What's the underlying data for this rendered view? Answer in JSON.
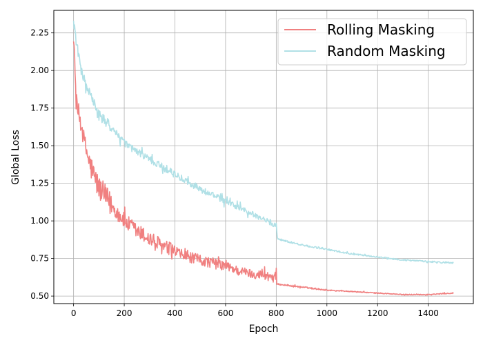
{
  "chart_data": {
    "type": "line",
    "title": "",
    "xlabel": "Epoch",
    "ylabel": "Global Loss",
    "xlim": [
      -78,
      1578
    ],
    "ylim": [
      0.45,
      2.4
    ],
    "xticks": [
      0,
      200,
      400,
      600,
      800,
      1000,
      1200,
      1400
    ],
    "yticks": [
      0.5,
      0.75,
      1.0,
      1.25,
      1.5,
      1.75,
      2.0,
      2.25
    ],
    "xtick_labels": [
      "0",
      "200",
      "400",
      "600",
      "800",
      "1000",
      "1200",
      "1400"
    ],
    "ytick_labels": [
      "0.50",
      "0.75",
      "1.00",
      "1.25",
      "1.50",
      "1.75",
      "2.00",
      "2.25"
    ],
    "grid": true,
    "legend_position": "top-right",
    "series": [
      {
        "name": "Rolling Masking",
        "color": "#f08080",
        "noise": [
          0.1,
          0.14,
          0.09,
          0.06,
          0.05,
          0.04,
          0.008,
          0.005
        ],
        "points": [
          [
            0,
            2.25
          ],
          [
            10,
            1.8
          ],
          [
            20,
            1.72
          ],
          [
            40,
            1.55
          ],
          [
            60,
            1.4
          ],
          [
            80,
            1.3
          ],
          [
            100,
            1.22
          ],
          [
            150,
            1.1
          ],
          [
            200,
            1.0
          ],
          [
            250,
            0.93
          ],
          [
            300,
            0.88
          ],
          [
            350,
            0.83
          ],
          [
            400,
            0.79
          ],
          [
            450,
            0.76
          ],
          [
            500,
            0.74
          ],
          [
            550,
            0.72
          ],
          [
            600,
            0.7
          ],
          [
            650,
            0.67
          ],
          [
            700,
            0.65
          ],
          [
            750,
            0.64
          ],
          [
            800,
            0.63
          ],
          [
            802,
            0.58
          ],
          [
            900,
            0.56
          ],
          [
            1000,
            0.54
          ],
          [
            1100,
            0.53
          ],
          [
            1200,
            0.52
          ],
          [
            1300,
            0.51
          ],
          [
            1400,
            0.51
          ],
          [
            1500,
            0.52
          ]
        ]
      },
      {
        "name": "Random Masking",
        "color": "#b0e0e6",
        "noise": [
          0.05,
          0.06,
          0.04,
          0.035,
          0.03,
          0.04,
          0.01,
          0.008
        ],
        "points": [
          [
            0,
            2.33
          ],
          [
            10,
            2.2
          ],
          [
            30,
            2.0
          ],
          [
            50,
            1.9
          ],
          [
            100,
            1.7
          ],
          [
            150,
            1.62
          ],
          [
            200,
            1.52
          ],
          [
            250,
            1.46
          ],
          [
            300,
            1.41
          ],
          [
            350,
            1.36
          ],
          [
            400,
            1.31
          ],
          [
            450,
            1.26
          ],
          [
            500,
            1.21
          ],
          [
            550,
            1.17
          ],
          [
            600,
            1.13
          ],
          [
            650,
            1.09
          ],
          [
            700,
            1.05
          ],
          [
            750,
            1.01
          ],
          [
            800,
            0.97
          ],
          [
            805,
            0.88
          ],
          [
            900,
            0.84
          ],
          [
            1000,
            0.81
          ],
          [
            1100,
            0.78
          ],
          [
            1200,
            0.76
          ],
          [
            1300,
            0.74
          ],
          [
            1400,
            0.73
          ],
          [
            1500,
            0.72
          ]
        ]
      }
    ]
  }
}
